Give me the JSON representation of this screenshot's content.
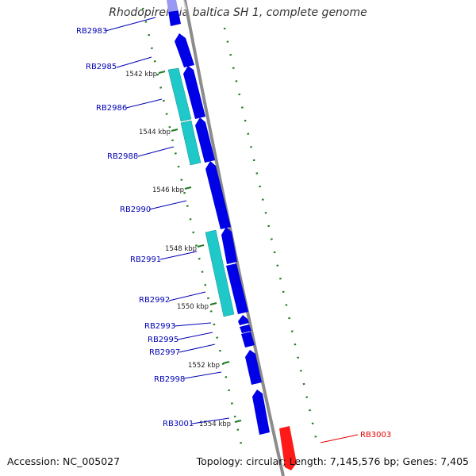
{
  "title": "Rhodopirellula baltica SH 1, complete genome",
  "footer": {
    "accession": "Accession: NC_005027",
    "summary": "Topology: circular; Length: 7,145,576 bp; Genes: 7,405"
  },
  "colors": {
    "backbone": "#8c8c8c",
    "gene_forward": "#0000e6",
    "gene_cyan": "#1fc9c9",
    "gene_highlight": "#ff1a1a",
    "label_blue": "#0000b4",
    "label_red": "#e60000",
    "tick_dash": "#1f7a1f"
  },
  "ticks": [
    "1542 kbp",
    "1544 kbp",
    "1546 kbp",
    "1548 kbp",
    "1550 kbp",
    "1552 kbp",
    "1554 kbp"
  ],
  "genes": [
    {
      "name": "RB2983",
      "color": "blue"
    },
    {
      "name": "RB2985",
      "color": "blue"
    },
    {
      "name": "RB2986",
      "color": "blue"
    },
    {
      "name": "RB2988",
      "color": "blue"
    },
    {
      "name": "RB2990",
      "color": "blue"
    },
    {
      "name": "RB2991",
      "color": "blue"
    },
    {
      "name": "RB2992",
      "color": "blue"
    },
    {
      "name": "RB2993",
      "color": "blue"
    },
    {
      "name": "RB2995",
      "color": "blue"
    },
    {
      "name": "RB2997",
      "color": "blue"
    },
    {
      "name": "RB2998",
      "color": "blue"
    },
    {
      "name": "RB3001",
      "color": "blue"
    },
    {
      "name": "RB3003",
      "color": "red"
    }
  ]
}
